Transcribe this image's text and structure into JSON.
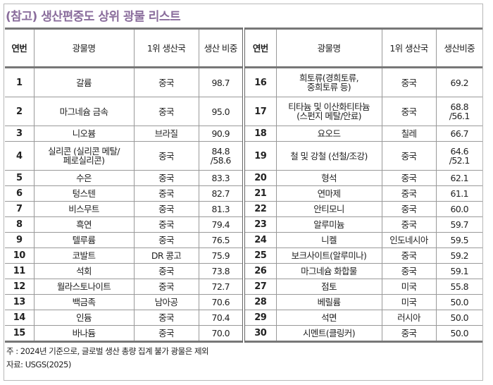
{
  "title": "(참고) 생산편중도 상위 광물 리스트",
  "colors": {
    "title": "#8a6d9c",
    "border": "#777777"
  },
  "headers_left": [
    "연번",
    "광물명",
    "1위 생산국",
    "생산 비중"
  ],
  "headers_right": [
    "연번",
    "광물명",
    "1위 생산국",
    "생산비중"
  ],
  "rows": [
    {
      "l": [
        "1",
        "갈륨",
        "중국",
        "98.7"
      ],
      "r": [
        "16",
        "희토류(경희토류,\n중희토류 등)",
        "중국",
        "69.2"
      ]
    },
    {
      "l": [
        "2",
        "마그네슘 금속",
        "중국",
        "95.0"
      ],
      "r": [
        "17",
        "티타늄 및 이산화티타늄\n(스펀지 메탈/안료)",
        "중국",
        "68.8\n/56.1"
      ]
    },
    {
      "l": [
        "3",
        "니오븀",
        "브라질",
        "90.9"
      ],
      "r": [
        "18",
        "요오드",
        "칠레",
        "66.7"
      ]
    },
    {
      "l": [
        "4",
        "실리콘 (실리콘 메탈/\n페로실리콘)",
        "중국",
        "84.8\n/58.6"
      ],
      "r": [
        "19",
        "철 및 강철 (선철/조강)",
        "중국",
        "64.6\n/52.1"
      ]
    },
    {
      "l": [
        "5",
        "수은",
        "중국",
        "83.3"
      ],
      "r": [
        "20",
        "형석",
        "중국",
        "62.1"
      ]
    },
    {
      "l": [
        "6",
        "텅스텐",
        "중국",
        "82.7"
      ],
      "r": [
        "21",
        "연마제",
        "중국",
        "61.1"
      ]
    },
    {
      "l": [
        "7",
        "비스무트",
        "중국",
        "81.3"
      ],
      "r": [
        "22",
        "안티모니",
        "중국",
        "60.0"
      ]
    },
    {
      "l": [
        "8",
        "흑연",
        "중국",
        "79.4"
      ],
      "r": [
        "23",
        "알루미늄",
        "중국",
        "59.7"
      ]
    },
    {
      "l": [
        "9",
        "텔루륨",
        "중국",
        "76.5"
      ],
      "r": [
        "24",
        "니켈",
        "인도네시아",
        "59.5"
      ]
    },
    {
      "l": [
        "10",
        "코발트",
        "DR 콩고",
        "75.9"
      ],
      "r": [
        "25",
        "보크사이트(알루미나)",
        "중국",
        "59.2"
      ]
    },
    {
      "l": [
        "11",
        "석회",
        "중국",
        "73.8"
      ],
      "r": [
        "26",
        "마그네슘 화합물",
        "중국",
        "59.1"
      ]
    },
    {
      "l": [
        "12",
        "월라스토나이트",
        "중국",
        "72.7"
      ],
      "r": [
        "27",
        "점토",
        "미국",
        "55.8"
      ]
    },
    {
      "l": [
        "13",
        "백금족",
        "남아공",
        "70.6"
      ],
      "r": [
        "28",
        "베릴륨",
        "미국",
        "50.0"
      ]
    },
    {
      "l": [
        "14",
        "인듐",
        "중국",
        "70.4"
      ],
      "r": [
        "29",
        "석면",
        "러시아",
        "50.0"
      ]
    },
    {
      "l": [
        "15",
        "바나듐",
        "중국",
        "70.0"
      ],
      "r": [
        "30",
        "시멘트(클링커)",
        "중국",
        "50.0"
      ]
    }
  ],
  "notes": {
    "note": "주 : 2024년 기준으로, 글로벌 생산 총량 집계 불가 광물은 제외",
    "source": "자료: USGS(2025)"
  }
}
